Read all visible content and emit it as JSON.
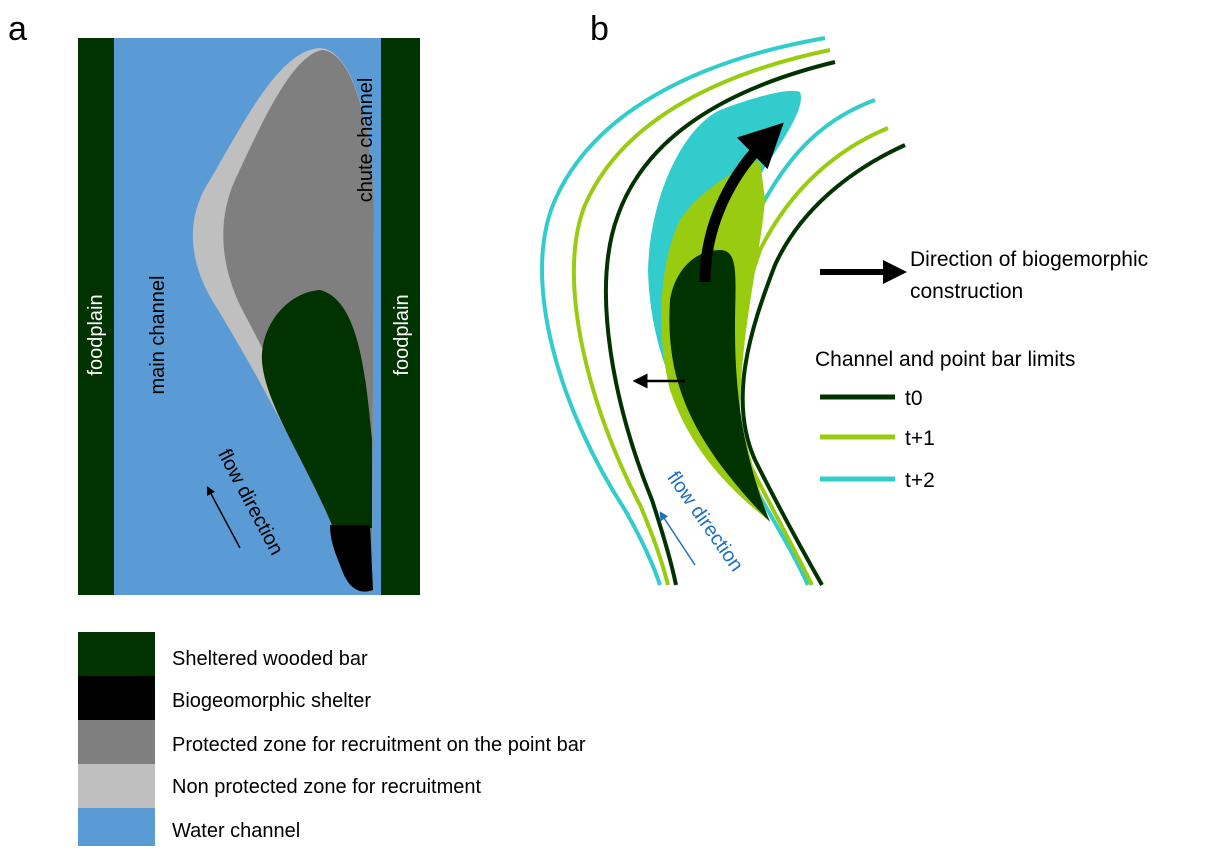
{
  "panel_a": {
    "label": "a",
    "floodplain_left": "foodplain",
    "main_channel": "main channel",
    "chute_channel": "chute channel",
    "floodplain_right": "foodplain",
    "flow_direction": "flow direction"
  },
  "panel_b": {
    "label": "b",
    "flow_direction": "flow direction",
    "arrow_legend": [
      "Direction of biogemorphic",
      "construction"
    ],
    "limits_title": "Channel and point bar limits",
    "limits": [
      "t0",
      "t+1",
      "t+2"
    ]
  },
  "legend": [
    "Sheltered wooded bar",
    "Biogeomorphic shelter",
    "Protected zone for recruitment on the point bar",
    "Non protected zone for recruitment",
    "Water channel"
  ]
}
